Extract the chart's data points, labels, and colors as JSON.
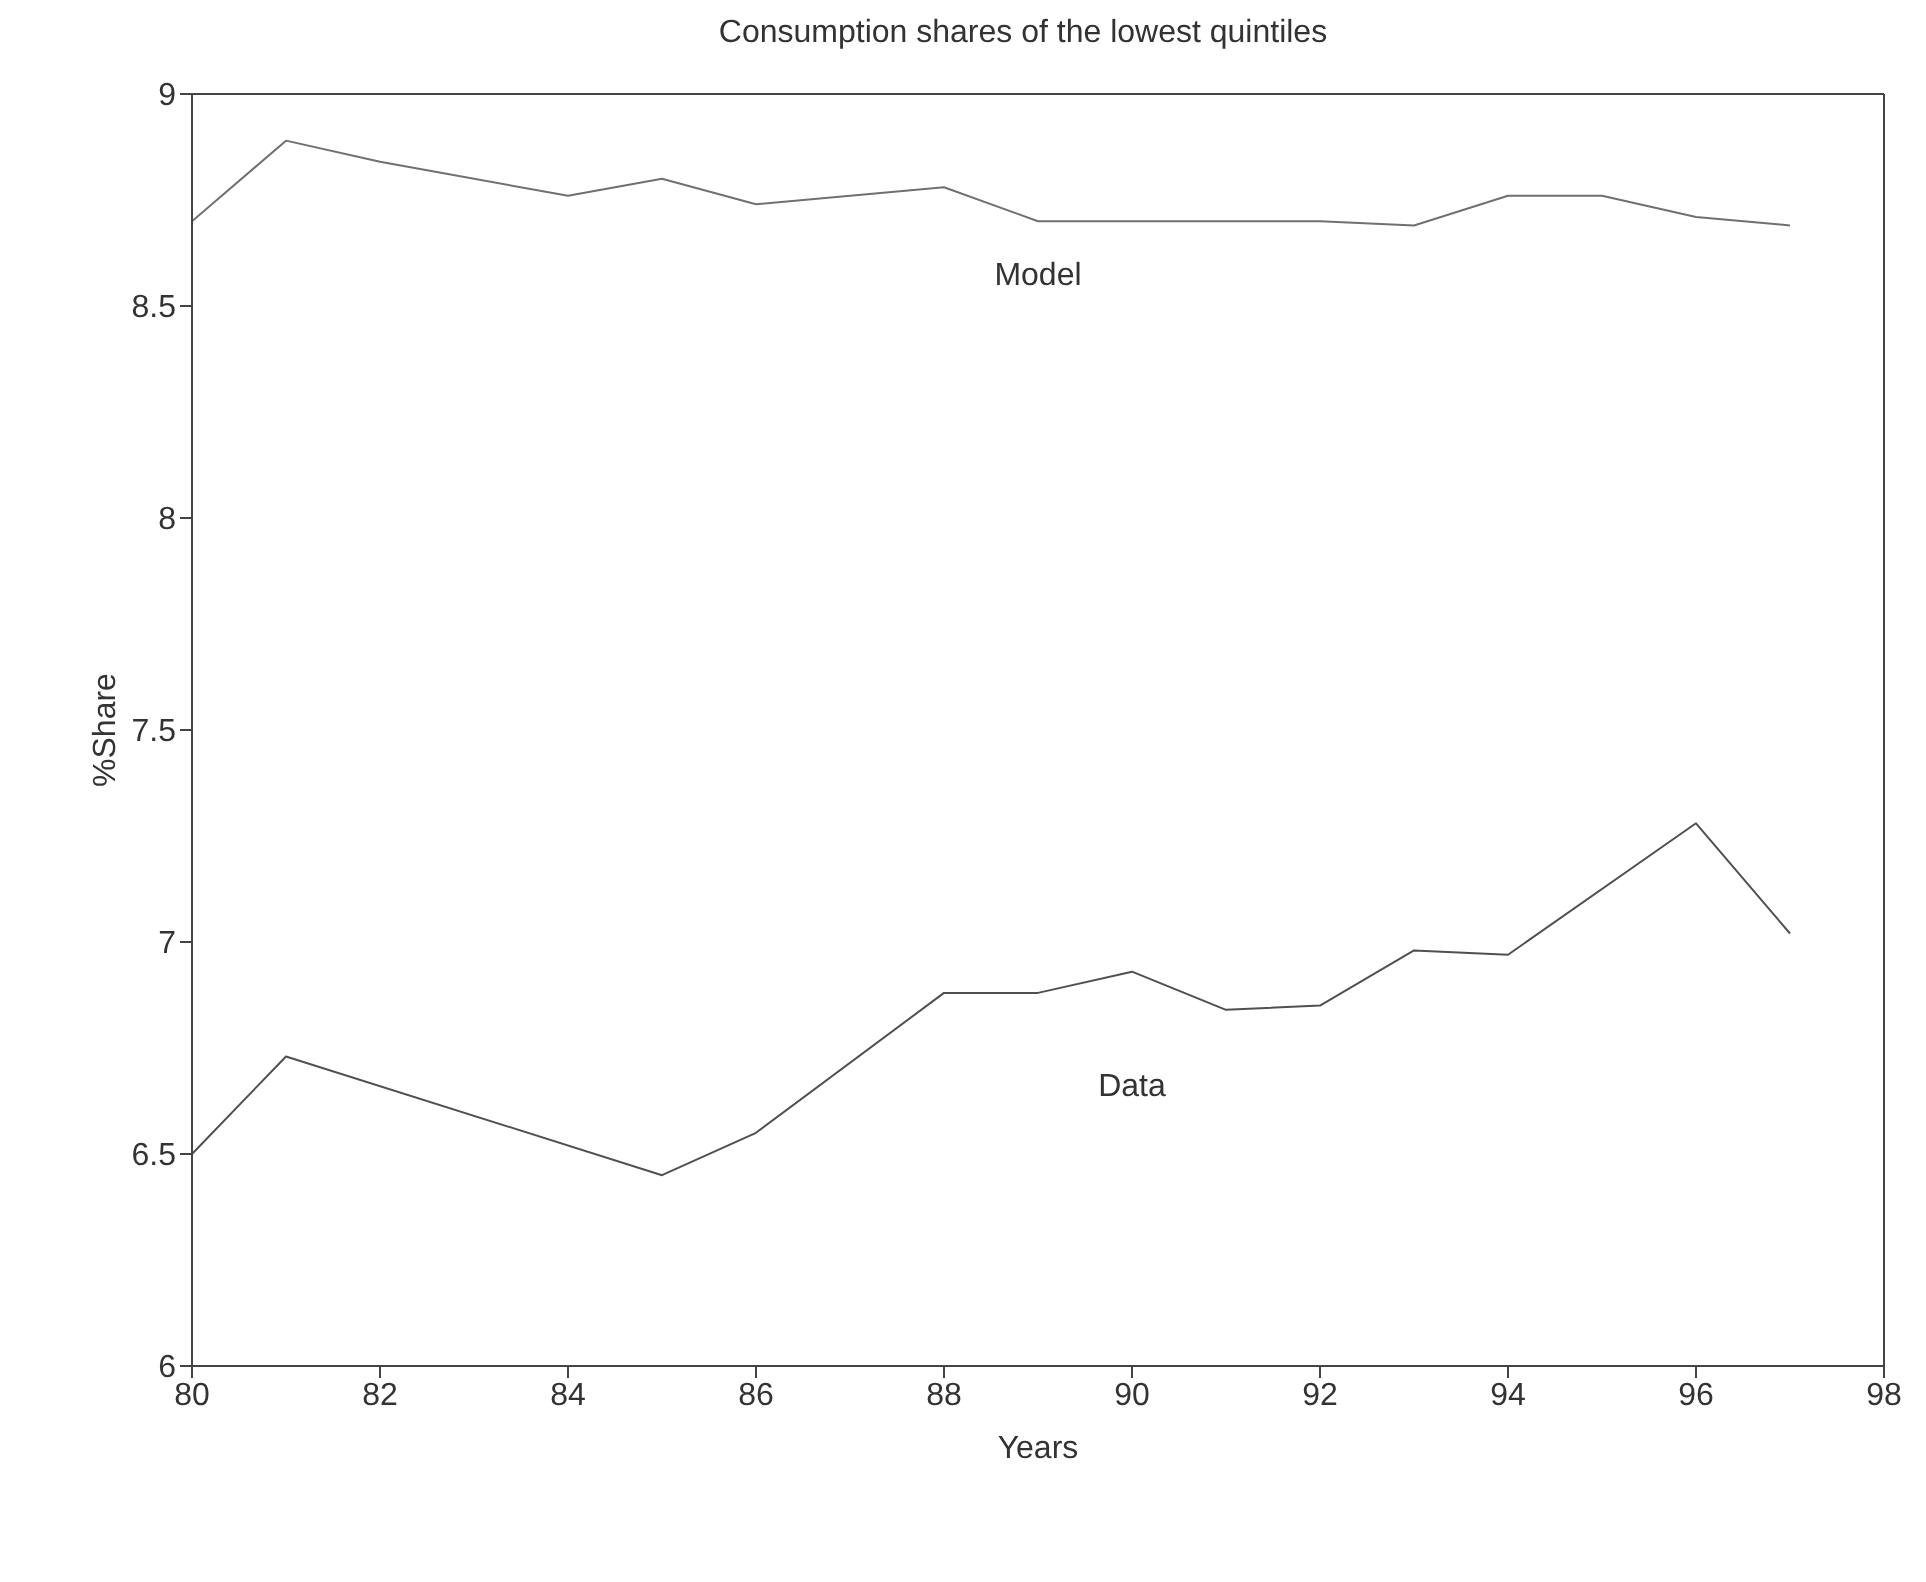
{
  "chart_data": {
    "type": "line",
    "title": "Consumption shares of the lowest quintiles",
    "xlabel": "Years",
    "ylabel": "%Share",
    "series": [
      {
        "name": "Model",
        "color": "#707070",
        "x": [
          80,
          81,
          82,
          84,
          85,
          86,
          88,
          89,
          92,
          93,
          94,
          95,
          96,
          97
        ],
        "values": [
          8.7,
          8.89,
          8.84,
          8.76,
          8.8,
          8.74,
          8.78,
          8.7,
          8.7,
          8.69,
          8.76,
          8.76,
          8.71,
          8.69
        ]
      },
      {
        "name": "Data",
        "color": "#505050",
        "x": [
          80,
          81,
          85,
          86,
          88,
          89,
          90,
          91,
          92,
          93,
          94,
          96,
          97
        ],
        "values": [
          6.5,
          6.73,
          6.45,
          6.55,
          6.88,
          6.88,
          6.93,
          6.84,
          6.85,
          6.98,
          6.97,
          7.28,
          7.02
        ]
      }
    ],
    "xlim": [
      80,
      98
    ],
    "xticks": [
      80,
      82,
      84,
      86,
      88,
      90,
      92,
      94,
      96,
      98
    ],
    "ylim": [
      6,
      9
    ],
    "yticks": [
      6,
      6.5,
      7,
      7.5,
      8,
      8.5,
      9
    ],
    "grid": false,
    "legend": false,
    "marker": "none",
    "line_style": "solid"
  }
}
